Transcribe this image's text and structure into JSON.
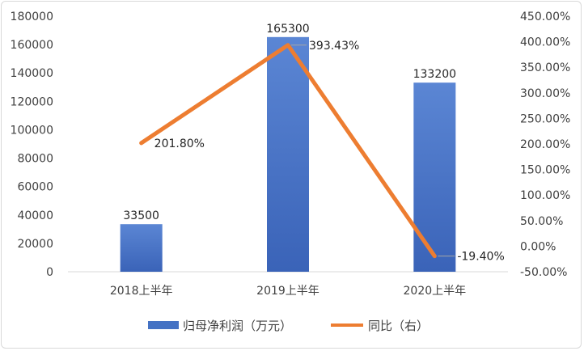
{
  "chart_data": {
    "type": "bar",
    "categories": [
      "2018上半年",
      "2019上半年",
      "2020上半年"
    ],
    "series": [
      {
        "name": "归母净利润（万元）",
        "type": "bar",
        "axis": "left",
        "values": [
          33500,
          165300,
          133200
        ],
        "labels": [
          "33500",
          "165300",
          "133200"
        ],
        "color": "#4472c4"
      },
      {
        "name": "同比（右）",
        "type": "line",
        "axis": "right",
        "values": [
          201.8,
          393.43,
          -19.4
        ],
        "labels": [
          "201.80%",
          "393.43%",
          "-19.40%"
        ],
        "color": "#ed7d31"
      }
    ],
    "y_left": {
      "lim": [
        0,
        180000
      ],
      "ticks": [
        "0",
        "20000",
        "40000",
        "60000",
        "80000",
        "100000",
        "120000",
        "140000",
        "160000",
        "180000"
      ]
    },
    "y_right": {
      "lim": [
        -50,
        450
      ],
      "ticks": [
        "-50.00%",
        "0.00%",
        "50.00%",
        "100.00%",
        "150.00%",
        "200.00%",
        "250.00%",
        "300.00%",
        "350.00%",
        "400.00%",
        "450.00%"
      ]
    },
    "grid": false,
    "legend": "bottom-center"
  }
}
